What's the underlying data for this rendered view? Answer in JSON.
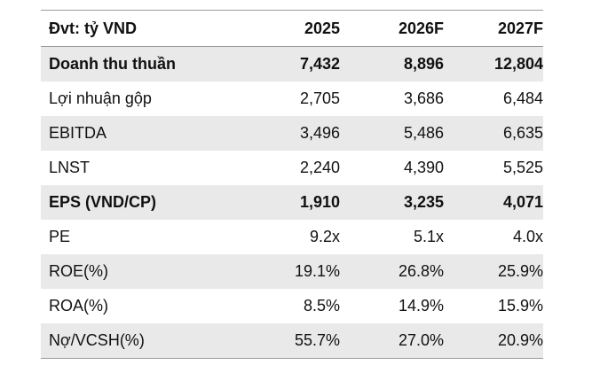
{
  "table": {
    "headers": [
      "Đvt: tỷ VND",
      "2025",
      "2026F",
      "2027F"
    ],
    "rows": [
      {
        "label": "Doanh thu thuần",
        "values": [
          "7,432",
          "8,896",
          "12,804"
        ],
        "bold": true,
        "shaded": true
      },
      {
        "label": "Lợi nhuận gộp",
        "values": [
          "2,705",
          "3,686",
          "6,484"
        ],
        "bold": false,
        "shaded": false
      },
      {
        "label": "EBITDA",
        "values": [
          "3,496",
          "5,486",
          "6,635"
        ],
        "bold": false,
        "shaded": true
      },
      {
        "label": "LNST",
        "values": [
          "2,240",
          "4,390",
          "5,525"
        ],
        "bold": false,
        "shaded": false
      },
      {
        "label": "EPS (VND/CP)",
        "values": [
          "1,910",
          "3,235",
          "4,071"
        ],
        "bold": true,
        "shaded": true
      },
      {
        "label": "PE",
        "values": [
          "9.2x",
          "5.1x",
          "4.0x"
        ],
        "bold": false,
        "shaded": false
      },
      {
        "label": "ROE(%)",
        "values": [
          "19.1%",
          "26.8%",
          "25.9%"
        ],
        "bold": false,
        "shaded": true
      },
      {
        "label": "ROA(%)",
        "values": [
          "8.5%",
          "14.9%",
          "15.9%"
        ],
        "bold": false,
        "shaded": false
      },
      {
        "label": "Nợ/VCSH(%)",
        "values": [
          "55.7%",
          "27.0%",
          "20.9%"
        ],
        "bold": false,
        "shaded": true
      }
    ]
  },
  "colors": {
    "row_shade": "#e9e9e9",
    "rule": "#9a9a9a",
    "text": "#111111"
  }
}
